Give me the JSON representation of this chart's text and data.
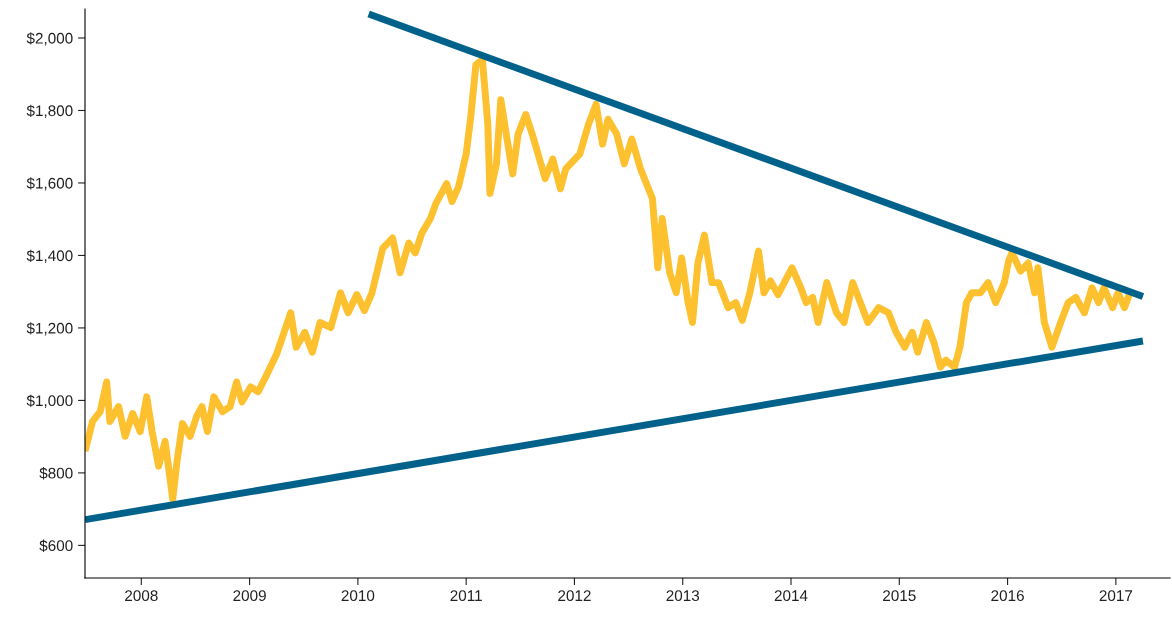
{
  "chart_data": {
    "type": "line",
    "xlim": [
      2007.48,
      2017.5
    ],
    "ylim": [
      510,
      2080
    ],
    "xticks": [
      2008,
      2009,
      2010,
      2011,
      2012,
      2013,
      2014,
      2015,
      2016,
      2017
    ],
    "yticks": [
      {
        "value": 600,
        "label": "$600"
      },
      {
        "value": 800,
        "label": "$800"
      },
      {
        "value": 1000,
        "label": "$1,000"
      },
      {
        "value": 1200,
        "label": "$1,200"
      },
      {
        "value": 1400,
        "label": "$1,400"
      },
      {
        "value": 1600,
        "label": "$1,600"
      },
      {
        "value": 1800,
        "label": "$1,800"
      },
      {
        "value": 2000,
        "label": "$2,000"
      }
    ],
    "grid": false,
    "legend": false,
    "marker": "none",
    "line_style": "solid",
    "series": [
      {
        "color": "#fdc02f",
        "x": [
          2007.48,
          2007.55,
          2007.62,
          2007.68,
          2007.71,
          2007.79,
          2007.85,
          2007.92,
          2007.99,
          2008.05,
          2008.1,
          2008.16,
          2008.22,
          2008.29,
          2008.33,
          2008.38,
          2008.45,
          2008.51,
          2008.56,
          2008.61,
          2008.67,
          2008.75,
          2008.82,
          2008.88,
          2008.93,
          2009.01,
          2009.08,
          2009.17,
          2009.25,
          2009.38,
          2009.43,
          2009.51,
          2009.58,
          2009.65,
          2009.75,
          2009.84,
          2009.91,
          2009.99,
          2010.06,
          2010.13,
          2010.23,
          2010.32,
          2010.39,
          2010.47,
          2010.53,
          2010.59,
          2010.67,
          2010.72,
          2010.82,
          2010.87,
          2010.93,
          2011.0,
          2011.04,
          2011.09,
          2011.15,
          2011.2,
          2011.22,
          2011.28,
          2011.32,
          2011.37,
          2011.43,
          2011.48,
          2011.55,
          2011.61,
          2011.73,
          2011.8,
          2011.87,
          2011.92,
          2012.05,
          2012.13,
          2012.2,
          2012.26,
          2012.31,
          2012.39,
          2012.46,
          2012.53,
          2012.61,
          2012.72,
          2012.76,
          2012.77,
          2012.81,
          2012.88,
          2012.94,
          2012.99,
          2013.05,
          2013.09,
          2013.14,
          2013.2,
          2013.27,
          2013.33,
          2013.42,
          2013.49,
          2013.55,
          2013.62,
          2013.7,
          2013.75,
          2013.81,
          2013.88,
          2013.96,
          2014.01,
          2014.09,
          2014.14,
          2014.2,
          2014.25,
          2014.33,
          2014.42,
          2014.49,
          2014.57,
          2014.64,
          2014.71,
          2014.81,
          2014.9,
          2014.97,
          2015.05,
          2015.12,
          2015.17,
          2015.25,
          2015.32,
          2015.38,
          2015.43,
          2015.51,
          2015.56,
          2015.62,
          2015.67,
          2015.75,
          2015.82,
          2015.89,
          2015.97,
          2016.01,
          2016.04,
          2016.12,
          2016.19,
          2016.25,
          2016.28,
          2016.34,
          2016.41,
          2016.49,
          2016.56,
          2016.63,
          2016.71,
          2016.78,
          2016.84,
          2016.89,
          2016.97,
          2017.02,
          2017.08,
          2017.13
        ],
        "values": [
          860,
          942,
          969,
          1051,
          942,
          983,
          901,
          964,
          914,
          1010,
          914,
          819,
          887,
          728,
          832,
          936,
          901,
          955,
          983,
          914,
          1010,
          969,
          983,
          1051,
          996,
          1037,
          1024,
          1078,
          1128,
          1242,
          1147,
          1188,
          1133,
          1215,
          1201,
          1297,
          1242,
          1292,
          1248,
          1297,
          1420,
          1448,
          1352,
          1434,
          1407,
          1461,
          1502,
          1543,
          1598,
          1549,
          1590,
          1680,
          1776,
          1926,
          1940,
          1762,
          1571,
          1653,
          1830,
          1735,
          1625,
          1735,
          1789,
          1735,
          1612,
          1666,
          1584,
          1639,
          1680,
          1762,
          1817,
          1707,
          1776,
          1735,
          1653,
          1721,
          1639,
          1557,
          1407,
          1366,
          1502,
          1352,
          1297,
          1393,
          1270,
          1215,
          1379,
          1456,
          1325,
          1325,
          1256,
          1270,
          1221,
          1297,
          1412,
          1297,
          1330,
          1292,
          1338,
          1366,
          1311,
          1270,
          1284,
          1215,
          1325,
          1242,
          1215,
          1325,
          1270,
          1215,
          1256,
          1242,
          1188,
          1147,
          1188,
          1133,
          1215,
          1160,
          1092,
          1111,
          1092,
          1147,
          1270,
          1297,
          1297,
          1325,
          1270,
          1325,
          1385,
          1407,
          1357,
          1379,
          1297,
          1366,
          1215,
          1147,
          1215,
          1270,
          1284,
          1242,
          1311,
          1270,
          1311,
          1256,
          1297,
          1256,
          1297
        ]
      },
      {
        "color": "#00628b",
        "x": [
          2010.1,
          2017.25
        ],
        "values": [
          2066,
          1287
        ]
      },
      {
        "color": "#00628b",
        "x": [
          2007.48,
          2017.25
        ],
        "values": [
          671,
          1164
        ]
      }
    ]
  }
}
